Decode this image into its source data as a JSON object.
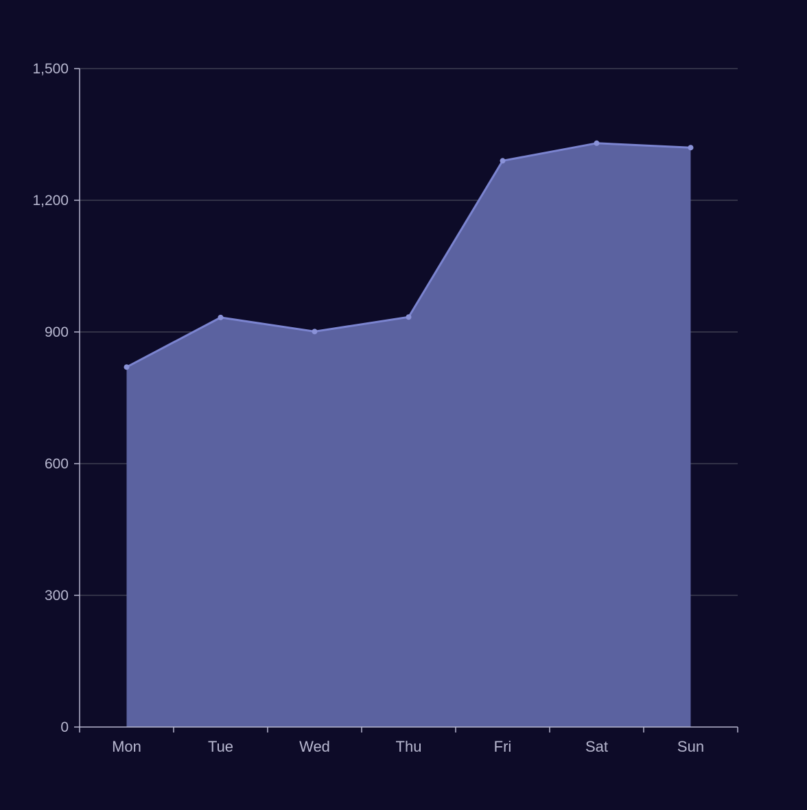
{
  "colors": {
    "background": "#0d0b28",
    "grid": "#4a4a5a",
    "axis": "#b8b8d0",
    "tick_label": "#b8b8d0",
    "line": "#7b84d0",
    "area": "#5b62a0",
    "marker": "#8a92d8"
  },
  "chart_data": {
    "type": "area",
    "title": "",
    "xlabel": "",
    "ylabel": "",
    "categories": [
      "Mon",
      "Tue",
      "Wed",
      "Thu",
      "Fri",
      "Sat",
      "Sun"
    ],
    "series": [
      {
        "values": [
          820,
          933,
          901,
          934,
          1290,
          1330,
          1320
        ]
      }
    ],
    "ylim": [
      0,
      1500
    ],
    "yticks": [
      0,
      300,
      600,
      900,
      1200,
      1500
    ],
    "ytick_labels": [
      "0",
      "300",
      "600",
      "900",
      "1,200",
      "1,500"
    ],
    "grid": true,
    "legend": "none"
  }
}
